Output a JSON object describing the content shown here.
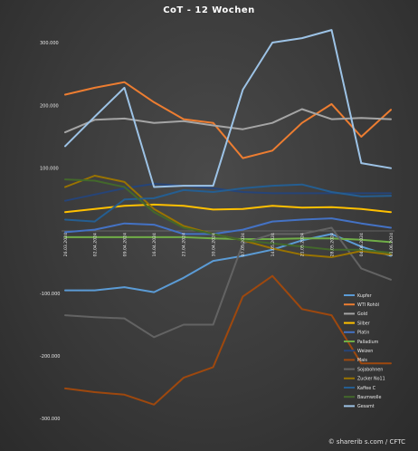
{
  "chart_data": {
    "type": "line",
    "title": "CoT - 12 Wochen",
    "xlabel": "",
    "ylabel": "",
    "ylim": [
      -300000,
      300000
    ],
    "yticks": [
      {
        "value": 300000,
        "label": "300.000"
      },
      {
        "value": 200000,
        "label": "200.000"
      },
      {
        "value": 100000,
        "label": "100.000"
      },
      {
        "value": -100000,
        "label": "-100.000"
      },
      {
        "value": -200000,
        "label": "-200.000"
      },
      {
        "value": -300000,
        "label": "-300.000"
      }
    ],
    "grid": false,
    "legend_position": "right",
    "x": [
      "26.03.2024",
      "02.04.2024",
      "09.04.2024",
      "16.04.2024",
      "23.04.2024",
      "30.04.2024",
      "07.05.2024",
      "14.05.2024",
      "21.05.2024",
      "28.05.2024",
      "04.06.2024",
      "11.06.2024"
    ],
    "series": [
      {
        "name": "Kupfer",
        "color": "#5b9bd5",
        "values": [
          -95000,
          -95000,
          -90000,
          -98000,
          -75000,
          -48000,
          -40000,
          -30000,
          -15000,
          -5000,
          -25000,
          -40000
        ]
      },
      {
        "name": "WTI Rohöl",
        "color": "#ed7d31",
        "values": [
          217000,
          228000,
          237000,
          205000,
          178000,
          172000,
          116000,
          128000,
          172000,
          202000,
          150000,
          193000
        ]
      },
      {
        "name": "Gold",
        "color": "#a5a5a5",
        "values": [
          157000,
          177000,
          179000,
          172000,
          175000,
          168000,
          162000,
          172000,
          194000,
          178000,
          180000,
          178000
        ]
      },
      {
        "name": "Silber",
        "color": "#ffc000",
        "values": [
          30000,
          35000,
          40000,
          42000,
          40000,
          34000,
          35000,
          40000,
          37000,
          38000,
          35000,
          30000
        ]
      },
      {
        "name": "Platin",
        "color": "#4472c4",
        "values": [
          -2000,
          2000,
          12000,
          10000,
          -5000,
          -5000,
          2000,
          15000,
          18000,
          20000,
          12000,
          5000
        ]
      },
      {
        "name": "Palladium",
        "color": "#70ad47",
        "values": [
          -10000,
          -10000,
          -10000,
          -10000,
          -10000,
          -12000,
          -13000,
          -13000,
          -12000,
          -12000,
          -14000,
          -18000
        ]
      },
      {
        "name": "Weizen",
        "color": "#264478",
        "values": [
          48000,
          58000,
          68000,
          75000,
          72000,
          68000,
          62000,
          60000,
          60000,
          60000,
          60000,
          60000
        ]
      },
      {
        "name": "Mais",
        "color": "#9e480e",
        "values": [
          -252000,
          -258000,
          -262000,
          -278000,
          -235000,
          -218000,
          -105000,
          -72000,
          -125000,
          -135000,
          -212000,
          -212000
        ]
      },
      {
        "name": "Sojabohnen",
        "color": "#636363",
        "values": [
          -135000,
          -138000,
          -140000,
          -170000,
          -150000,
          -150000,
          -20000,
          -5000,
          -5000,
          5000,
          -60000,
          -78000
        ]
      },
      {
        "name": "Zucker No11",
        "color": "#997300",
        "values": [
          70000,
          88000,
          78000,
          35000,
          8000,
          -5000,
          -15000,
          -28000,
          -38000,
          -42000,
          -32000,
          -38000
        ]
      },
      {
        "name": "Kaffee C",
        "color": "#255e91",
        "values": [
          18000,
          15000,
          50000,
          52000,
          65000,
          62000,
          68000,
          72000,
          74000,
          62000,
          55000,
          56000
        ]
      },
      {
        "name": "Baumwolle",
        "color": "#43682b",
        "values": [
          82000,
          80000,
          70000,
          30000,
          5000,
          -5000,
          -15000,
          -20000,
          -25000,
          -30000,
          -30000,
          -35000
        ]
      },
      {
        "name": "Gesamt",
        "color": "#9dc3e6",
        "values": [
          135000,
          182000,
          228000,
          70000,
          72000,
          72000,
          225000,
          300000,
          307000,
          320000,
          108000,
          100000
        ]
      }
    ]
  },
  "credit": "© sharerib s.com / CFTC"
}
